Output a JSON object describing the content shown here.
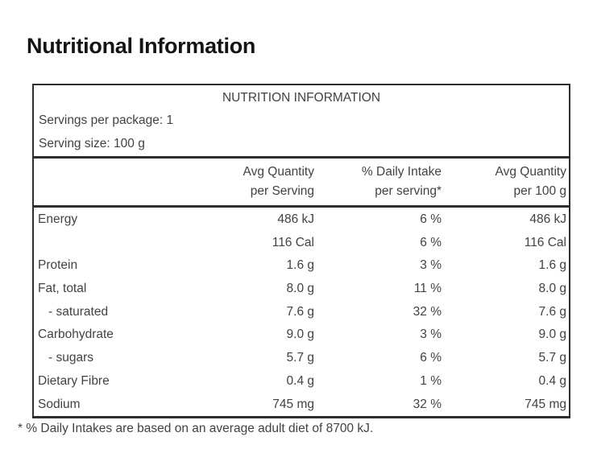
{
  "page": {
    "title": "Nutritional Information"
  },
  "table": {
    "header": "NUTRITION INFORMATION",
    "servings_per_package": "Servings per package: 1",
    "serving_size": "Serving size: 100 g",
    "columns": {
      "per_serving": {
        "line1": "Avg Quantity",
        "line2": "per Serving"
      },
      "daily_intake": {
        "line1": "% Daily Intake",
        "line2": "per serving*"
      },
      "per_100g": {
        "line1": "Avg Quantity",
        "line2": "per 100 g"
      }
    },
    "rows": [
      {
        "label": "Energy",
        "per_serving": "486 kJ",
        "daily_intake": "6 %",
        "per_100g": "486 kJ"
      },
      {
        "label": "",
        "per_serving": "116 Cal",
        "daily_intake": "6 %",
        "per_100g": "116 Cal"
      },
      {
        "label": "Protein",
        "per_serving": "1.6 g",
        "daily_intake": "3 %",
        "per_100g": "1.6 g"
      },
      {
        "label": "Fat, total",
        "per_serving": "8.0 g",
        "daily_intake": "11 %",
        "per_100g": "8.0 g"
      },
      {
        "label": "- saturated",
        "per_serving": "7.6 g",
        "daily_intake": "32 %",
        "per_100g": "7.6 g"
      },
      {
        "label": "Carbohydrate",
        "per_serving": "9.0 g",
        "daily_intake": "3 %",
        "per_100g": "9.0 g"
      },
      {
        "label": "- sugars",
        "per_serving": "5.7 g",
        "daily_intake": "6 %",
        "per_100g": "5.7 g"
      },
      {
        "label": "Dietary Fibre",
        "per_serving": "0.4 g",
        "daily_intake": "1 %",
        "per_100g": "0.4 g"
      },
      {
        "label": "Sodium",
        "per_serving": "745 mg",
        "daily_intake": "32 %",
        "per_100g": "745 mg"
      }
    ]
  },
  "footnote": "* % Daily Intakes are based on an average adult diet of 8700 kJ.",
  "colors": {
    "background": "#ffffff",
    "title_text": "#141414",
    "table_text": "#3f4347",
    "border": "#2e2e2e"
  }
}
